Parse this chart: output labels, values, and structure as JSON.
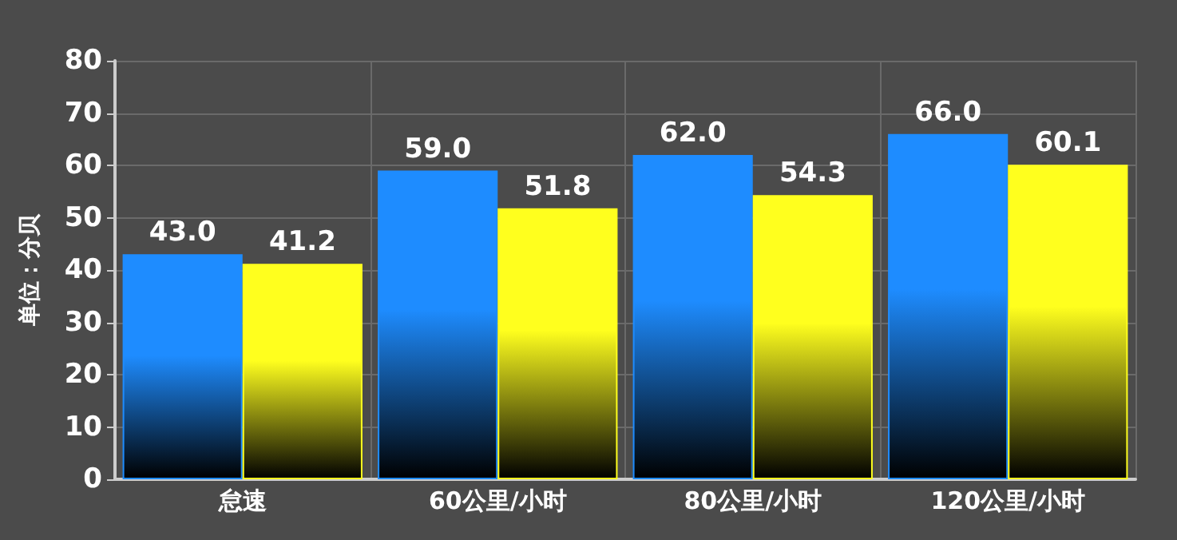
{
  "chart_data": {
    "type": "bar",
    "ylabel": "单位：分贝",
    "categories": [
      "怠速",
      "60公里/小时",
      "80公里/小时",
      "120公里/小时"
    ],
    "series": [
      {
        "color": "#1e8cff",
        "values": [
          43.0,
          59.0,
          62.0,
          66.0
        ],
        "value_labels": [
          "43.0",
          "59.0",
          "62.0",
          "66.0"
        ]
      },
      {
        "color": "#ffff1e",
        "values": [
          41.2,
          51.8,
          54.3,
          60.1
        ],
        "value_labels": [
          "41.2",
          "51.8",
          "54.3",
          "60.1"
        ]
      }
    ],
    "ylim": [
      0,
      80
    ],
    "yticks": [
      0,
      10,
      20,
      30,
      40,
      50,
      60,
      70,
      80
    ],
    "grid": true
  }
}
